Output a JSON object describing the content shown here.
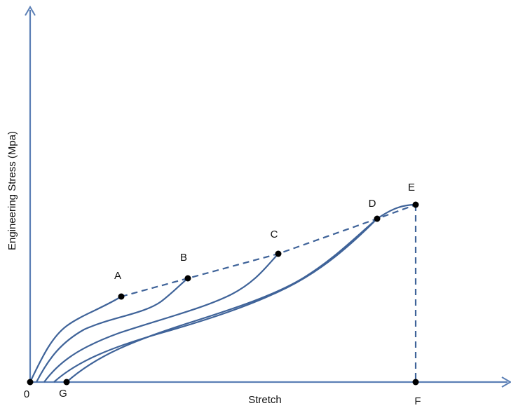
{
  "diagram": {
    "x_axis_label": "Stretch",
    "y_axis_label": "Engineering Stress (Mpa)",
    "points": {
      "origin": "0",
      "A": "A",
      "B": "B",
      "C": "C",
      "D": "D",
      "E": "E",
      "F": "F",
      "G": "G"
    }
  },
  "colors": {
    "axis": "#5b7fb5",
    "curve": "#3f6399",
    "point": "#000000",
    "text": "#111111"
  }
}
